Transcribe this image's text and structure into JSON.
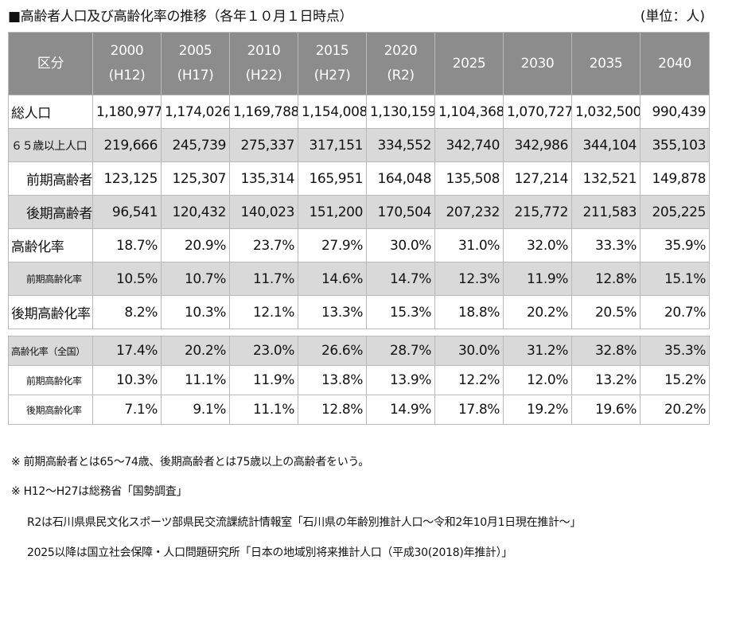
{
  "title": "■高齢者人口及び高齢化率の推移（各年１０月１日時点）",
  "unit": "(単位：人)",
  "header": {
    "label": "区分",
    "columns": [
      {
        "year": "2000",
        "era": "(H12)"
      },
      {
        "year": "2005",
        "era": "(H17)"
      },
      {
        "year": "2010",
        "era": "(H22)"
      },
      {
        "year": "2015",
        "era": "(H27)"
      },
      {
        "year": "2020",
        "era": "(R2)"
      },
      {
        "year": "2025",
        "era": ""
      },
      {
        "year": "2030",
        "era": ""
      },
      {
        "year": "2035",
        "era": ""
      },
      {
        "year": "2040",
        "era": ""
      }
    ]
  },
  "rows": [
    {
      "label": "総人口",
      "values": [
        "1,180,977",
        "1,174,026",
        "1,169,788",
        "1,154,008",
        "1,130,159",
        "1,104,368",
        "1,070,727",
        "1,032,500",
        "990,439"
      ]
    },
    {
      "label": "６５歳以上人口",
      "values": [
        "219,666",
        "245,739",
        "275,337",
        "317,151",
        "334,552",
        "342,740",
        "342,986",
        "344,104",
        "355,103"
      ]
    },
    {
      "label": "前期高齢者",
      "values": [
        "123,125",
        "125,307",
        "135,314",
        "165,951",
        "164,048",
        "135,508",
        "127,214",
        "132,521",
        "149,878"
      ]
    },
    {
      "label": "後期高齢者",
      "values": [
        "96,541",
        "120,432",
        "140,023",
        "151,200",
        "170,504",
        "207,232",
        "215,772",
        "211,583",
        "205,225"
      ]
    },
    {
      "label": "高齢化率",
      "values": [
        "18.7%",
        "20.9%",
        "23.7%",
        "27.9%",
        "30.0%",
        "31.0%",
        "32.0%",
        "33.3%",
        "35.9%"
      ]
    },
    {
      "label": "前期高齢化率",
      "values": [
        "10.5%",
        "10.7%",
        "11.7%",
        "14.6%",
        "14.7%",
        "12.3%",
        "11.9%",
        "12.8%",
        "15.1%"
      ]
    },
    {
      "label": "後期高齢化率",
      "values": [
        "8.2%",
        "10.3%",
        "12.1%",
        "13.3%",
        "15.3%",
        "18.8%",
        "20.2%",
        "20.5%",
        "20.7%"
      ]
    }
  ],
  "national_rows": [
    {
      "label": "高齢化率（全国）",
      "values": [
        "17.4%",
        "20.2%",
        "23.0%",
        "26.6%",
        "28.7%",
        "30.0%",
        "31.2%",
        "32.8%",
        "35.3%"
      ]
    },
    {
      "label": "前期高齢化率",
      "values": [
        "10.3%",
        "11.1%",
        "11.9%",
        "13.8%",
        "13.9%",
        "12.2%",
        "12.0%",
        "13.2%",
        "15.2%"
      ]
    },
    {
      "label": "後期高齢化率",
      "values": [
        "7.1%",
        "9.1%",
        "11.1%",
        "12.8%",
        "14.9%",
        "17.8%",
        "19.2%",
        "19.6%",
        "20.2%"
      ]
    }
  ],
  "notes": [
    "※ 前期高齢者とは65～74歳、後期高齢者とは75歳以上の高齢者をいう。",
    "※ H12～H27は総務省「国勢調査」",
    "R2は石川県県民文化スポーツ部県民交流課統計情報室「石川県の年齢別推計人口～令和2年10月1日現在推計～」",
    "2025以降は国立社会保障・人口問題研究所「日本の地域別将来推計人口（平成30(2018)年推計）」"
  ]
}
